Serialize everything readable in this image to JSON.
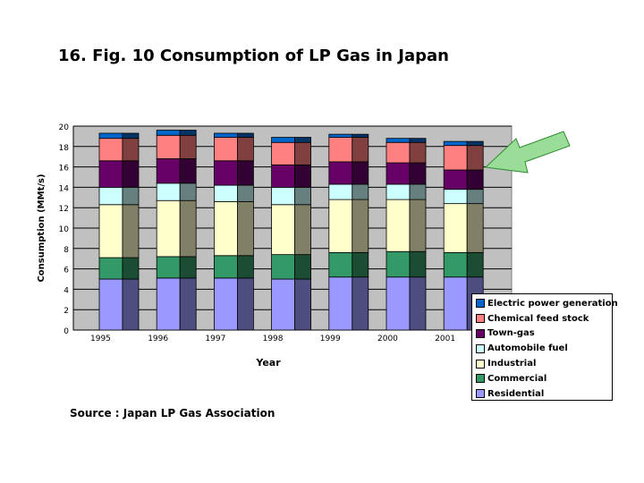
{
  "title": "16. Fig. 10  Consumption of LP Gas in Japan",
  "source": "Source : Japan LP Gas Association",
  "chart_data": {
    "type": "bar",
    "stacked": true,
    "xlabel": "Year",
    "ylabel": "Consumption (MMt/s)",
    "ylim": [
      0,
      20
    ],
    "yticks": [
      0,
      2,
      4,
      6,
      8,
      10,
      12,
      14,
      16,
      18,
      20
    ],
    "grid": true,
    "legend_position": "bottom-right",
    "categories": [
      "1995",
      "1996",
      "1997",
      "1998",
      "1999",
      "2000",
      "2001"
    ],
    "series": [
      {
        "name": "Residential",
        "color": "#9999ff",
        "values": [
          5.0,
          5.1,
          5.1,
          5.0,
          5.2,
          5.2,
          5.2
        ]
      },
      {
        "name": "Commercial",
        "color": "#339966",
        "values": [
          2.1,
          2.1,
          2.2,
          2.4,
          2.4,
          2.5,
          2.4
        ]
      },
      {
        "name": "Industrial",
        "color": "#ffffcc",
        "values": [
          5.2,
          5.5,
          5.3,
          4.9,
          5.2,
          5.1,
          4.8
        ]
      },
      {
        "name": "Automobile fuel",
        "color": "#ccffff",
        "values": [
          1.7,
          1.7,
          1.6,
          1.7,
          1.5,
          1.5,
          1.4
        ]
      },
      {
        "name": "Town-gas",
        "color": "#660066",
        "values": [
          2.6,
          2.4,
          2.4,
          2.2,
          2.2,
          2.1,
          1.9
        ]
      },
      {
        "name": "Chemical feed stock",
        "color": "#ff8080",
        "values": [
          2.2,
          2.3,
          2.3,
          2.2,
          2.4,
          2.0,
          2.4
        ]
      },
      {
        "name": "Electric power generation",
        "color": "#0066cc",
        "values": [
          0.5,
          0.5,
          0.4,
          0.5,
          0.3,
          0.4,
          0.4
        ]
      }
    ],
    "legend_order": [
      "Electric power generation",
      "Chemical feed stock",
      "Town-gas",
      "Automobile fuel",
      "Industrial",
      "Commercial",
      "Residential"
    ],
    "annotation": "green arrow pointing at 2001 Chemical feed stock"
  }
}
